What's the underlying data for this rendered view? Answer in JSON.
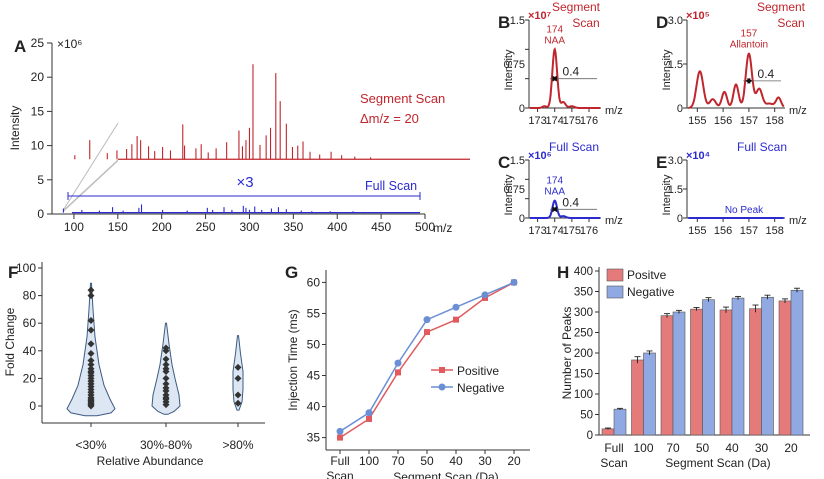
{
  "chart_data": [
    {
      "panel": "A",
      "type": "line",
      "title": "",
      "xlabel": "m/z",
      "ylabel": "Intensity",
      "y_scale_label": "×10⁶",
      "xlim": [
        75,
        500
      ],
      "ylim": [
        0,
        25
      ],
      "x_ticks": [
        100,
        150,
        200,
        250,
        300,
        350,
        400,
        450,
        500
      ],
      "y_ticks": [
        0,
        5,
        10,
        15,
        20,
        25
      ],
      "multiplier_label": "×3",
      "annotation_lines": [
        "Segment Scan",
        "Δm/z = 20"
      ],
      "series": [
        {
          "name": "Segment Scan",
          "color": "#c0262d",
          "baseline": 8,
          "peaks": [
            [
              101,
              8.6
            ],
            [
              118,
              10.8
            ],
            [
              138,
              8.9
            ],
            [
              149,
              9.3
            ],
            [
              160,
              9.5
            ],
            [
              166,
              10.2
            ],
            [
              172,
              11.4
            ],
            [
              176,
              10.8
            ],
            [
              185,
              9.9
            ],
            [
              192,
              9.2
            ],
            [
              201,
              9.8
            ],
            [
              210,
              9.3
            ],
            [
              224,
              13.1
            ],
            [
              226,
              10.0
            ],
            [
              239,
              9.6
            ],
            [
              245,
              10.2
            ],
            [
              253,
              9.0
            ],
            [
              262,
              9.6
            ],
            [
              274,
              10.5
            ],
            [
              288,
              12.2
            ],
            [
              292,
              9.9
            ],
            [
              296,
              10.8
            ],
            [
              300,
              12.6
            ],
            [
              304,
              21.9
            ],
            [
              312,
              10.1
            ],
            [
              319,
              11.5
            ],
            [
              324,
              12.6
            ],
            [
              330,
              20.6
            ],
            [
              335,
              16.5
            ],
            [
              342,
              13.2
            ],
            [
              349,
              9.8
            ],
            [
              355,
              10.0
            ],
            [
              361,
              10.6
            ],
            [
              369,
              9.1
            ],
            [
              380,
              8.7
            ],
            [
              393,
              9.1
            ],
            [
              405,
              8.6
            ],
            [
              420,
              8.4
            ],
            [
              438,
              8.3
            ]
          ]
        },
        {
          "name": "Full Scan",
          "color": "#2b2bd1",
          "baseline": 0.2,
          "peaks": [
            [
              88,
              0.8
            ],
            [
              109,
              0.6
            ],
            [
              129,
              0.5
            ],
            [
              144,
              1.0
            ],
            [
              156,
              0.5
            ],
            [
              174,
              0.9
            ],
            [
              177,
              1.4
            ],
            [
              201,
              0.6
            ],
            [
              229,
              0.5
            ],
            [
              252,
              0.9
            ],
            [
              258,
              0.6
            ],
            [
              271,
              1.0
            ],
            [
              280,
              0.6
            ],
            [
              293,
              1.2
            ],
            [
              296,
              0.9
            ],
            [
              300,
              0.6
            ],
            [
              306,
              1.1
            ],
            [
              314,
              0.6
            ],
            [
              325,
              0.8
            ],
            [
              333,
              1.0
            ],
            [
              342,
              0.7
            ],
            [
              359,
              0.5
            ],
            [
              371,
              0.4
            ],
            [
              392,
              0.4
            ],
            [
              418,
              0.4
            ],
            [
              431,
              0.3
            ],
            [
              450,
              0.3
            ]
          ]
        }
      ]
    },
    {
      "panel": "B",
      "type": "line",
      "title": "Segment Scan",
      "xlabel": "m/z",
      "ylabel": "Intensity",
      "y_scale_label": "×10⁷",
      "y_top_tick": "1.5",
      "xlim": [
        172.5,
        176.7
      ],
      "ylim": [
        0,
        1.5
      ],
      "x_ticks": [
        173,
        174,
        175,
        176
      ],
      "y_ticks": [
        0,
        0.5,
        1,
        1.5
      ],
      "peak_label": [
        "174",
        "NAA"
      ],
      "width_label": "0.4",
      "color": "#c0262d",
      "peaks": [
        [
          173.4,
          0.03,
          0.12
        ],
        [
          174.0,
          1.0,
          0.14
        ],
        [
          174.5,
          0.1,
          0.13
        ],
        [
          175.0,
          0.03,
          0.15
        ]
      ]
    },
    {
      "panel": "C",
      "type": "line",
      "title": "Full Scan",
      "xlabel": "m/z",
      "ylabel": "Intensity",
      "y_scale_label": "×10⁶",
      "y_top_tick": "1.5",
      "xlim": [
        172.5,
        176.7
      ],
      "ylim": [
        0,
        1.5
      ],
      "x_ticks": [
        173,
        174,
        175,
        176
      ],
      "y_ticks": [
        0,
        0.5,
        1,
        1.5
      ],
      "peak_label": [
        "174",
        "NAA"
      ],
      "width_label": "0.4",
      "color": "#2b2bd1",
      "peaks": [
        [
          174.0,
          0.45,
          0.13
        ],
        [
          174.5,
          0.05,
          0.14
        ]
      ]
    },
    {
      "panel": "D",
      "type": "line",
      "title": "Segment Scan",
      "xlabel": "m/z",
      "ylabel": "Intensity",
      "y_scale_label": "×10⁵",
      "y_top_tick": "3.0",
      "xlim": [
        154.6,
        158.4
      ],
      "ylim": [
        0,
        3
      ],
      "x_ticks": [
        155,
        156,
        157,
        158
      ],
      "y_ticks": [
        0,
        1.5,
        3
      ],
      "peak_label": [
        "157",
        "Allantoin"
      ],
      "width_label": "0.4",
      "color": "#c0262d",
      "peaks": [
        [
          155.1,
          1.25,
          0.13
        ],
        [
          155.6,
          0.3,
          0.12
        ],
        [
          156.05,
          0.55,
          0.1
        ],
        [
          156.5,
          0.8,
          0.1
        ],
        [
          157.0,
          1.85,
          0.12
        ],
        [
          157.4,
          0.65,
          0.12
        ],
        [
          157.8,
          0.15,
          0.15
        ],
        [
          158.15,
          0.35,
          0.1
        ]
      ]
    },
    {
      "panel": "E",
      "type": "line",
      "title": "Full Scan",
      "xlabel": "m/z",
      "ylabel": "Intensity",
      "y_scale_label": "×10⁴",
      "y_top_tick": "3.0",
      "xlim": [
        154.6,
        158.4
      ],
      "ylim": [
        0,
        3
      ],
      "x_ticks": [
        155,
        156,
        157,
        158
      ],
      "y_ticks": [
        0,
        1.5,
        3
      ],
      "note": "No Peak",
      "color": "#2b2bd1",
      "peaks": []
    },
    {
      "panel": "F",
      "type": "violin",
      "xlabel": "Relative Abundance",
      "ylabel": "Fold Change",
      "ylim": [
        -8,
        100
      ],
      "y_ticks": [
        0,
        20,
        40,
        60,
        80,
        100
      ],
      "categories": [
        "<30%",
        "30%-80%",
        ">80%"
      ],
      "points": [
        [
          84,
          80,
          62,
          55,
          45,
          38,
          33,
          30,
          27,
          25,
          24,
          22,
          20,
          18,
          16,
          14,
          12,
          10,
          8,
          6,
          5,
          4,
          3,
          2,
          1,
          0
        ],
        [
          42,
          40,
          34,
          30,
          27,
          25,
          20,
          16,
          13,
          11,
          8,
          6,
          5,
          3,
          1
        ],
        [
          28,
          20,
          8,
          2
        ]
      ]
    },
    {
      "panel": "G",
      "type": "line",
      "xlabel": "Segment Scan (Da)",
      "x_first_label": [
        "Full",
        "Scan"
      ],
      "ylabel": "Injection Time (ms)",
      "ylim": [
        33,
        62
      ],
      "y_ticks": [
        35,
        40,
        45,
        50,
        55,
        60
      ],
      "categories": [
        "Full Scan",
        "100",
        "70",
        "50",
        "40",
        "30",
        "20"
      ],
      "series": [
        {
          "name": "Positive",
          "color": "#e05a5e",
          "values": [
            35.0,
            38.0,
            45.5,
            52.0,
            54.0,
            57.5,
            60.0
          ]
        },
        {
          "name": "Negative",
          "color": "#6a8fd4",
          "values": [
            36.0,
            39.0,
            47.0,
            54.0,
            56.0,
            58.0,
            60.0
          ]
        }
      ]
    },
    {
      "panel": "H",
      "type": "bar",
      "xlabel": "Segment Scan (Da)",
      "x_first_label": [
        "Full",
        "Scan"
      ],
      "ylabel": "Number of Peaks",
      "ylim": [
        0,
        400
      ],
      "y_ticks": [
        0,
        50,
        100,
        150,
        200,
        250,
        300,
        350,
        400
      ],
      "categories": [
        "Full Scan",
        "100",
        "70",
        "50",
        "40",
        "30",
        "20"
      ],
      "series": [
        {
          "name": "Positve",
          "color": "#e57a7b",
          "values": [
            15,
            183,
            291,
            307,
            305,
            308,
            327
          ],
          "errors": [
            2,
            8,
            5,
            4,
            7,
            9,
            5
          ]
        },
        {
          "name": "Negative",
          "color": "#91a9e2",
          "values": [
            63,
            200,
            300,
            330,
            334,
            336,
            353
          ],
          "errors": [
            2,
            5,
            4,
            5,
            4,
            5,
            5
          ]
        }
      ]
    }
  ]
}
